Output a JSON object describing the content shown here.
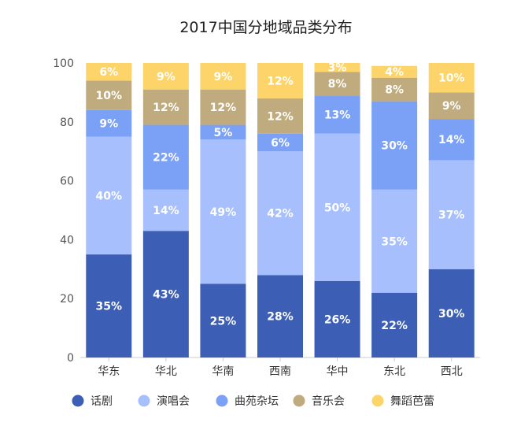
{
  "chart_data": {
    "type": "bar",
    "stacked": true,
    "title": "2017中国分地域品类分布",
    "categories": [
      "华东",
      "华北",
      "华南",
      "西南",
      "华中",
      "东北",
      "西北"
    ],
    "ylim": [
      0,
      100
    ],
    "yticks": [
      "0",
      "20",
      "40",
      "60",
      "80",
      "100"
    ],
    "grid": false,
    "legend_position": "bottom",
    "series": [
      {
        "name": "话剧",
        "color": "#3c5fb5",
        "values": [
          35,
          43,
          25,
          28,
          26,
          22,
          30
        ],
        "labels": [
          "35%",
          "43%",
          "25%",
          "28%",
          "26%",
          "22%",
          "30%"
        ]
      },
      {
        "name": "演唱会",
        "color": "#a7bffc",
        "values": [
          40,
          14,
          49,
          42,
          50,
          35,
          37
        ],
        "labels": [
          "40%",
          "14%",
          "49%",
          "42%",
          "50%",
          "35%",
          "37%"
        ]
      },
      {
        "name": "曲苑杂坛",
        "color": "#7aa1f5",
        "values": [
          9,
          22,
          5,
          6,
          13,
          30,
          14
        ],
        "labels": [
          "9%",
          "22%",
          "5%",
          "6%",
          "13%",
          "30%",
          "14%"
        ]
      },
      {
        "name": "音乐会",
        "color": "#bfab7d",
        "values": [
          10,
          12,
          12,
          12,
          8,
          8,
          9
        ],
        "labels": [
          "10%",
          "12%",
          "12%",
          "12%",
          "8%",
          "8%",
          "9%"
        ]
      },
      {
        "name": "舞蹈芭蕾",
        "color": "#fdd46a",
        "values": [
          6,
          9,
          9,
          12,
          3,
          4,
          10
        ],
        "labels": [
          "6%",
          "9%",
          "9%",
          "12%",
          "3%",
          "4%",
          "10%"
        ]
      }
    ]
  }
}
